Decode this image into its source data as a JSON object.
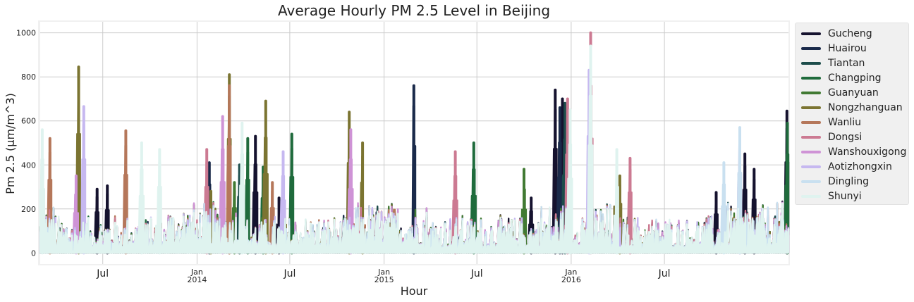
{
  "chart_data": {
    "type": "line",
    "title": "Average Hourly PM 2.5 Level in Beijing",
    "xlabel": "Hour",
    "ylabel": "Pm 2.5 (µm/m^3)",
    "x_range": [
      "2013-03-01",
      "2017-02-28"
    ],
    "ylim": [
      -50,
      1050
    ],
    "yticks": [
      0,
      200,
      400,
      600,
      800,
      1000
    ],
    "xticks": [
      {
        "date": "2013-07-01",
        "label": "Jul",
        "sublabel": ""
      },
      {
        "date": "2014-01-01",
        "label": "Jan",
        "sublabel": "2014"
      },
      {
        "date": "2014-07-01",
        "label": "Jul",
        "sublabel": ""
      },
      {
        "date": "2015-01-01",
        "label": "Jan",
        "sublabel": "2015"
      },
      {
        "date": "2015-07-01",
        "label": "Jul",
        "sublabel": ""
      },
      {
        "date": "2016-01-01",
        "label": "Jan",
        "sublabel": "2016"
      },
      {
        "date": "2016-07-01",
        "label": "Jul",
        "sublabel": ""
      }
    ],
    "grid": true,
    "legend_position": "outside-right",
    "series": [
      {
        "name": "Gucheng",
        "color": "#15122e",
        "peaks": [
          [
            "2013-06-20",
            290
          ],
          [
            "2013-07-10",
            305
          ],
          [
            "2014-04-25",
            530
          ],
          [
            "2014-06-10",
            250
          ],
          [
            "2015-10-15",
            250
          ],
          [
            "2015-12-01",
            740
          ],
          [
            "2015-12-15",
            700
          ],
          [
            "2016-10-10",
            275
          ],
          [
            "2016-12-05",
            450
          ],
          [
            "2016-12-23",
            380
          ],
          [
            "2017-02-25",
            645
          ]
        ]
      },
      {
        "name": "Huairou",
        "color": "#1a2a4a",
        "peaks": [
          [
            "2015-02-28",
            760
          ],
          [
            "2014-01-25",
            410
          ],
          [
            "2015-12-10",
            660
          ]
        ]
      },
      {
        "name": "Tiantan",
        "color": "#1c4c4a",
        "peaks": [
          [
            "2014-03-25",
            400
          ],
          [
            "2015-12-20",
            680
          ]
        ]
      },
      {
        "name": "Changping",
        "color": "#1f6b3c",
        "peaks": [
          [
            "2014-04-10",
            520
          ],
          [
            "2014-05-10",
            390
          ],
          [
            "2014-07-05",
            540
          ],
          [
            "2015-06-25",
            500
          ],
          [
            "2017-02-26",
            590
          ]
        ]
      },
      {
        "name": "Guanyuan",
        "color": "#417a33",
        "peaks": [
          [
            "2014-03-15",
            320
          ],
          [
            "2015-10-01",
            380
          ]
        ]
      },
      {
        "name": "Nongzhanguan",
        "color": "#7b7431",
        "peaks": [
          [
            "2013-05-15",
            845
          ],
          [
            "2014-03-05",
            810
          ],
          [
            "2014-05-15",
            690
          ],
          [
            "2014-01-28",
            280
          ],
          [
            "2014-10-25",
            640
          ],
          [
            "2014-11-20",
            500
          ],
          [
            "2016-04-05",
            350
          ]
        ]
      },
      {
        "name": "Wanliu",
        "color": "#b5775a",
        "peaks": [
          [
            "2013-03-20",
            520
          ],
          [
            "2013-08-15",
            555
          ],
          [
            "2014-03-05",
            760
          ],
          [
            "2014-05-28",
            320
          ]
        ]
      },
      {
        "name": "Dongsi",
        "color": "#cc7a92",
        "peaks": [
          [
            "2014-01-20",
            470
          ],
          [
            "2015-12-25",
            700
          ],
          [
            "2016-02-08",
            1000
          ],
          [
            "2016-04-25",
            430
          ],
          [
            "2015-05-20",
            460
          ]
        ]
      },
      {
        "name": "Wanshouxigong",
        "color": "#cf93d6",
        "peaks": [
          [
            "2013-05-10",
            350
          ],
          [
            "2014-02-20",
            620
          ],
          [
            "2014-10-28",
            560
          ],
          [
            "2016-11-25",
            560
          ]
        ]
      },
      {
        "name": "Aotizhongxin",
        "color": "#c6b8f0",
        "peaks": [
          [
            "2013-05-25",
            665
          ],
          [
            "2014-06-18",
            460
          ],
          [
            "2016-02-05",
            830
          ]
        ]
      },
      {
        "name": "Dingling",
        "color": "#c9e0f0",
        "peaks": [
          [
            "2016-10-25",
            410
          ],
          [
            "2016-11-25",
            570
          ]
        ]
      },
      {
        "name": "Shunyi",
        "color": "#dff3ef",
        "peaks": [
          [
            "2013-03-05",
            560
          ],
          [
            "2013-09-15",
            500
          ],
          [
            "2013-10-20",
            470
          ],
          [
            "2014-03-30",
            590
          ],
          [
            "2016-02-08",
            940
          ],
          [
            "2015-12-30",
            650
          ],
          [
            "2016-03-30",
            470
          ]
        ]
      }
    ]
  }
}
